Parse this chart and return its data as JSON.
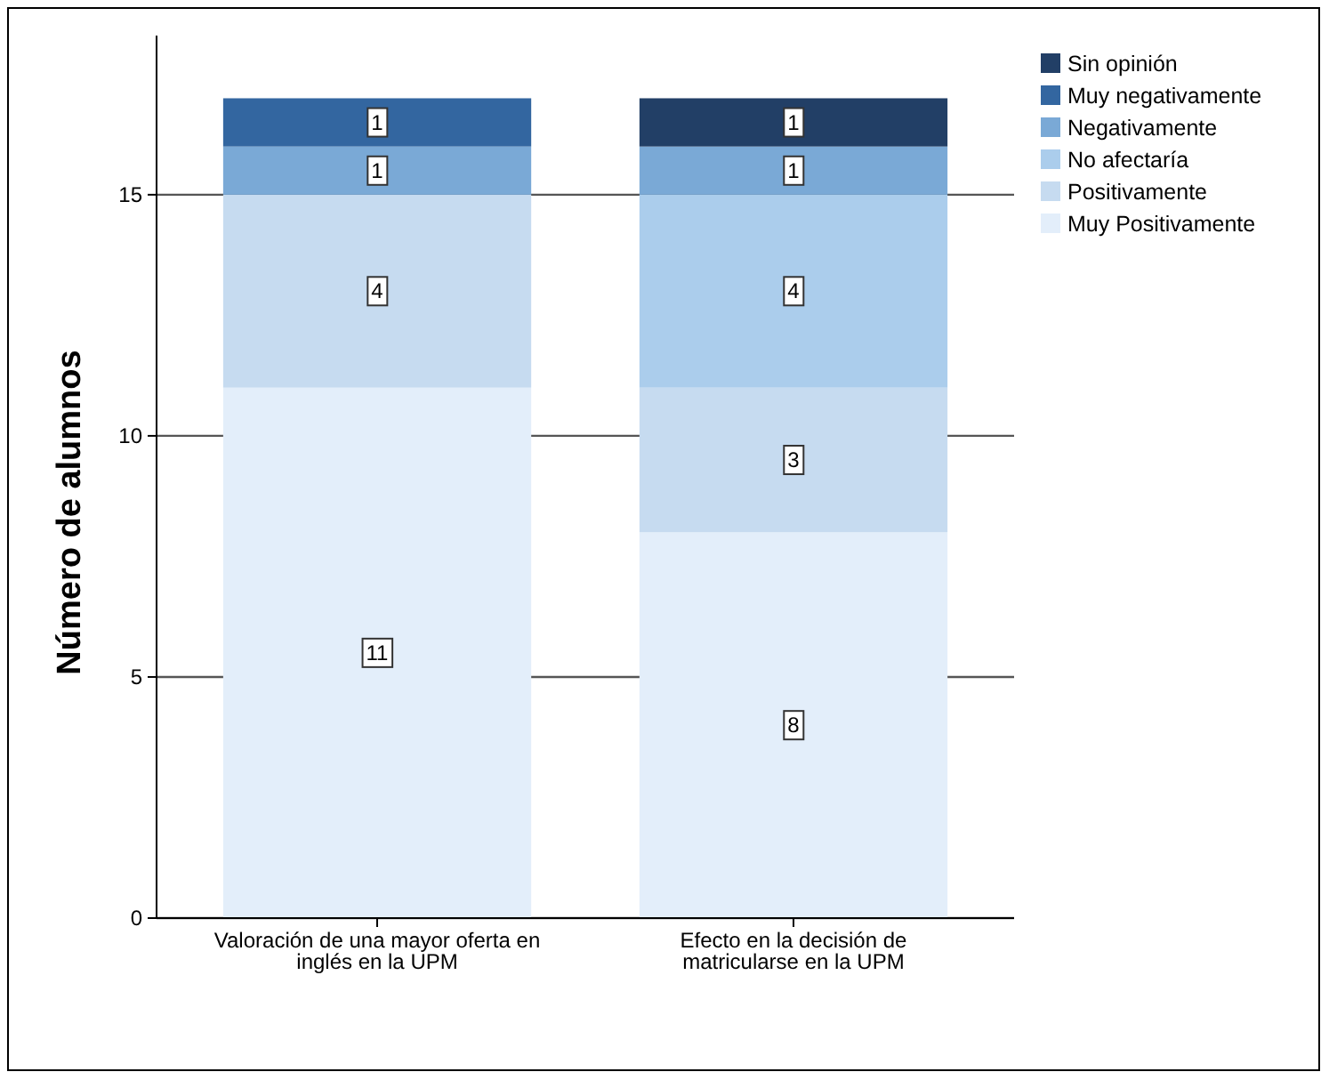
{
  "chart_data": {
    "type": "bar",
    "stacked": true,
    "ylabel": "Número de alumnos",
    "categories": [
      "Valoración de una mayor oferta en inglés en la UPM",
      "Efecto en la decisión de matricularse en la UPM"
    ],
    "series": [
      {
        "name": "Muy Positivamente",
        "color": "#e3eefa",
        "values": [
          11,
          8
        ]
      },
      {
        "name": "Positivamente",
        "color": "#c6dbf0",
        "values": [
          4,
          3
        ]
      },
      {
        "name": "No afectaría",
        "color": "#abcdec",
        "values": [
          null,
          4
        ]
      },
      {
        "name": "Negativamente",
        "color": "#7aa9d6",
        "values": [
          1,
          1
        ]
      },
      {
        "name": "Muy negativamente",
        "color": "#3366a0",
        "values": [
          1,
          null
        ]
      },
      {
        "name": "Sin opinión",
        "color": "#223f66",
        "values": [
          null,
          1
        ]
      }
    ],
    "ylim": [
      0,
      18.3
    ],
    "yticks": [
      0,
      5,
      10,
      15
    ],
    "grid": "y",
    "legend": "top right",
    "data_labels": true
  }
}
